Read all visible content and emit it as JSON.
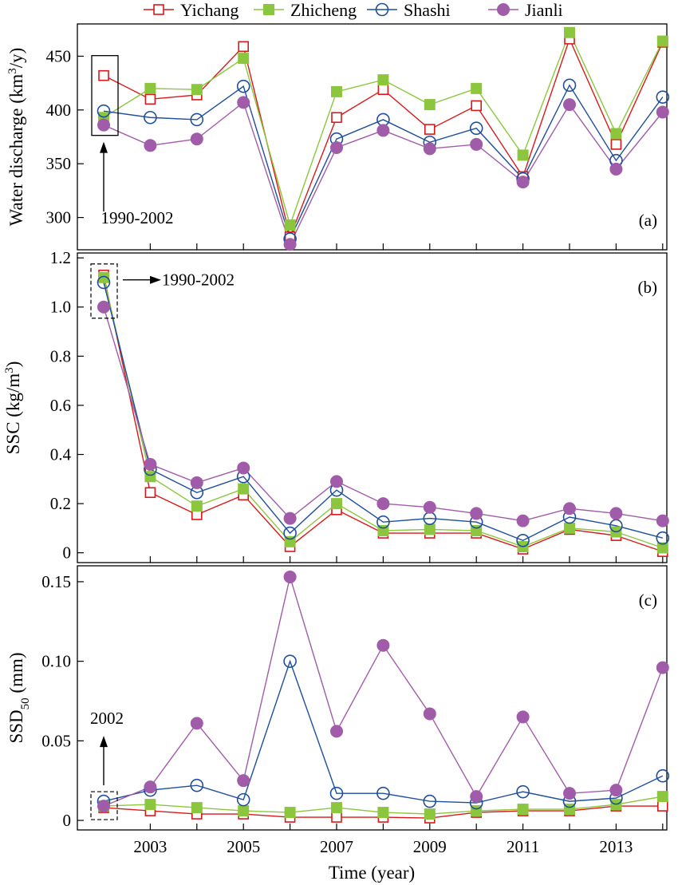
{
  "chart_data": {
    "type": "line",
    "legend": {
      "placement": "top",
      "items": [
        {
          "name": "Yichang",
          "color": "#d7191c",
          "marker": "open-square"
        },
        {
          "name": "Zhicheng",
          "color": "#8cc63f",
          "marker": "filled-square"
        },
        {
          "name": "Shashi",
          "color": "#1f4e9c",
          "marker": "open-circle"
        },
        {
          "name": "Jianli",
          "color": "#a05ca8",
          "marker": "filled-circle"
        }
      ]
    },
    "x": [
      "1990-2002",
      2003,
      2004,
      2005,
      2006,
      2007,
      2008,
      2009,
      2010,
      2011,
      2012,
      2013,
      2014
    ],
    "xticks": [
      "2003",
      "2005",
      "2007",
      "2009",
      "2011",
      "2013"
    ],
    "xlabel": "Time (year)",
    "panels": [
      {
        "id": "a",
        "label": "(a)",
        "ylabel_main": "Water discharge (km",
        "ylabel_sup": "3",
        "ylabel_tail": "/y)",
        "ylim": [
          270,
          480
        ],
        "yticks": [
          "300",
          "350",
          "400",
          "450"
        ],
        "annotation": "1990-2002",
        "series": [
          {
            "name": "Yichang",
            "values": [
              432,
              410,
              414,
              459,
              282,
              393,
              419,
              382,
              404,
              338,
              466,
              368,
              463
            ]
          },
          {
            "name": "Zhicheng",
            "values": [
              393,
              420,
              419,
              448,
              293,
              417,
              428,
              405,
              420,
              358,
              472,
              378,
              464
            ]
          },
          {
            "name": "Shashi",
            "values": [
              399,
              393,
              391,
              422,
              280,
              373,
              391,
              370,
              383,
              336,
              423,
              353,
              412
            ]
          },
          {
            "name": "Jianli",
            "values": [
              386,
              367,
              373,
              407,
              275,
              365,
              381,
              364,
              368,
              333,
              405,
              345,
              398
            ]
          }
        ]
      },
      {
        "id": "b",
        "label": "(b)",
        "ylabel_main": "SSC (kg/m",
        "ylabel_sup": "3",
        "ylabel_tail": ")",
        "ylim": [
          -0.04,
          1.22
        ],
        "yticks": [
          "0",
          "0.2",
          "0.4",
          "0.6",
          "0.8",
          "1.0",
          "1.2"
        ],
        "annotation": "1990-2002",
        "series": [
          {
            "name": "Yichang",
            "values": [
              1.13,
              0.245,
              0.155,
              0.235,
              0.025,
              0.175,
              0.08,
              0.08,
              0.08,
              0.015,
              0.095,
              0.07,
              0.005
            ]
          },
          {
            "name": "Zhicheng",
            "values": [
              1.12,
              0.31,
              0.19,
              0.26,
              0.045,
              0.2,
              0.09,
              0.095,
              0.09,
              0.025,
              0.1,
              0.085,
              0.02
            ]
          },
          {
            "name": "Shashi",
            "values": [
              1.1,
              0.34,
              0.245,
              0.31,
              0.08,
              0.255,
              0.125,
              0.14,
              0.125,
              0.05,
              0.145,
              0.11,
              0.06
            ]
          },
          {
            "name": "Jianli",
            "values": [
              1.0,
              0.36,
              0.285,
              0.345,
              0.14,
              0.29,
              0.2,
              0.185,
              0.16,
              0.13,
              0.18,
              0.16,
              0.13
            ]
          }
        ]
      },
      {
        "id": "c",
        "label": "(c)",
        "ylabel_main": "SSD",
        "ylabel_sub": "50",
        "ylabel_tail": " (mm)",
        "ylim": [
          -0.006,
          0.16
        ],
        "yticks": [
          "0",
          "0.05",
          "0.10",
          "0.15"
        ],
        "annotation": "2002",
        "series": [
          {
            "name": "Yichang",
            "values": [
              0.008,
              0.006,
              0.004,
              0.004,
              0.002,
              0.002,
              0.002,
              0.0015,
              0.005,
              0.006,
              0.006,
              0.009,
              0.009
            ]
          },
          {
            "name": "Zhicheng",
            "values": [
              0.009,
              0.01,
              0.008,
              0.006,
              0.005,
              0.008,
              0.005,
              0.004,
              0.006,
              0.007,
              0.007,
              0.01,
              0.015
            ]
          },
          {
            "name": "Shashi",
            "values": [
              0.012,
              0.019,
              0.022,
              0.013,
              0.1,
              0.017,
              0.017,
              0.012,
              0.011,
              0.018,
              0.012,
              0.014,
              0.028
            ]
          },
          {
            "name": "Jianli",
            "values": [
              0.009,
              0.021,
              0.061,
              0.025,
              0.153,
              0.056,
              0.11,
              0.067,
              0.015,
              0.065,
              0.017,
              0.019,
              0.096
            ]
          }
        ]
      }
    ]
  }
}
